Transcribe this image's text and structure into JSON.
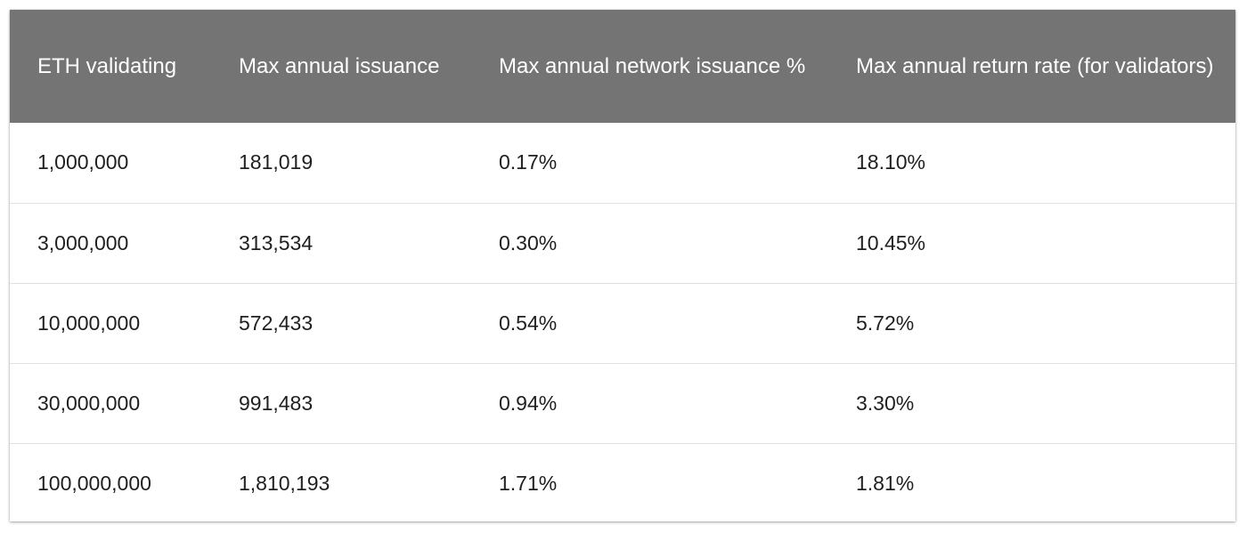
{
  "table": {
    "headers": [
      "ETH validating",
      "Max annual issuance",
      "Max annual network issuance %",
      "Max annual return rate (for validators)"
    ],
    "rows": [
      [
        "1,000,000",
        "181,019",
        "0.17%",
        "18.10%"
      ],
      [
        "3,000,000",
        "313,534",
        "0.30%",
        "10.45%"
      ],
      [
        "10,000,000",
        "572,433",
        "0.54%",
        "5.72%"
      ],
      [
        "30,000,000",
        "991,483",
        "0.94%",
        "3.30%"
      ],
      [
        "100,000,000",
        "1,810,193",
        "1.71%",
        "1.81%"
      ]
    ]
  },
  "colors": {
    "header_background": "#747474",
    "header_text": "#ffffff",
    "row_divider": "#e2e2e2"
  }
}
